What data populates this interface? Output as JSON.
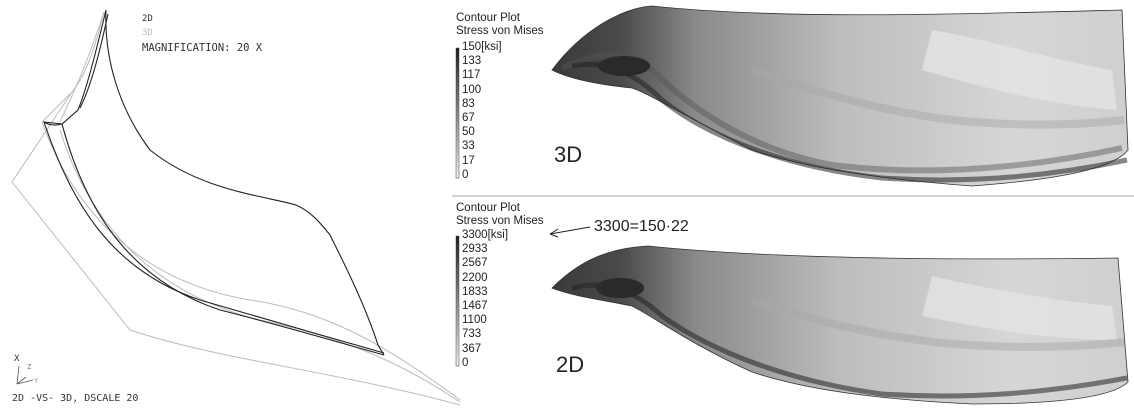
{
  "left": {
    "legend_2d": "2D",
    "legend_3d": "3D",
    "magnification": "MAGNIFICATION: 20 X",
    "axis_x": "X",
    "axis_z": "Z",
    "axis_y": "Y",
    "caption": "2D -VS- 3D, DSCALE 20",
    "color_2d": "#222222",
    "color_3d": "#bbbbbb"
  },
  "plot_3d": {
    "title1": "Contour Plot",
    "title2": "Stress von Mises",
    "ticks": [
      "150[ksi]",
      "133",
      "117",
      "100",
      "83",
      "67",
      "50",
      "33",
      "17",
      "0"
    ],
    "label": "3D"
  },
  "plot_2d": {
    "title1": "Contour Plot",
    "title2": "Stress von Mises",
    "ticks": [
      "3300[ksi]",
      "2933",
      "2567",
      "2200",
      "1833",
      "1467",
      "1100",
      "733",
      "367",
      "0"
    ],
    "label": "2D",
    "annotation": "3300=150·22"
  }
}
